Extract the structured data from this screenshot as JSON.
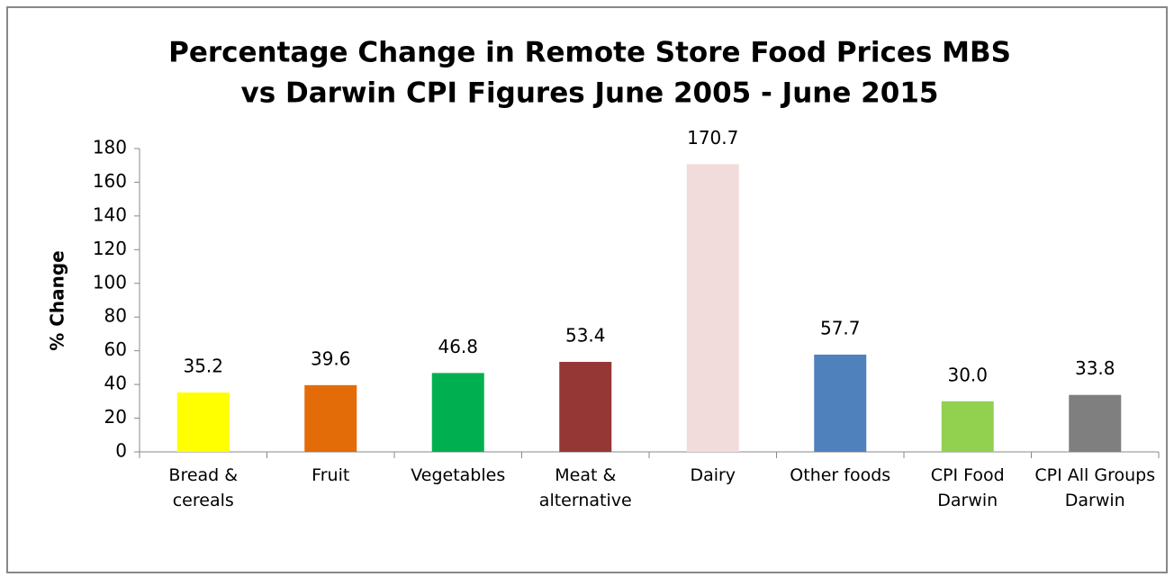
{
  "chart_data": {
    "type": "bar",
    "title": [
      "Percentage  Change in Remote Store Food Prices MBS",
      "vs Darwin CPI Figures  June 2005 - June 2015"
    ],
    "y_label": "% Change",
    "categories": [
      "Bread & cereals",
      "Fruit",
      "Vegetables",
      "Meat & alternative",
      "Dairy",
      "Other foods",
      "CPI Food Darwin",
      "CPI All Groups Darwin"
    ],
    "values": [
      35.2,
      39.6,
      46.8,
      53.4,
      170.7,
      57.7,
      30.0,
      33.8
    ],
    "value_labels": [
      "35.2",
      "39.6",
      "46.8",
      "53.4",
      "170.7",
      "57.7",
      "30.0",
      "33.8"
    ],
    "colors": [
      "#ffff00",
      "#e36c09",
      "#00b050",
      "#953735",
      "#f2dcdb",
      "#4f81bd",
      "#92d050",
      "#7f7f7f"
    ],
    "ylim": [
      0,
      180
    ],
    "yticks": [
      0,
      20,
      40,
      60,
      80,
      100,
      120,
      140,
      160,
      180
    ]
  }
}
